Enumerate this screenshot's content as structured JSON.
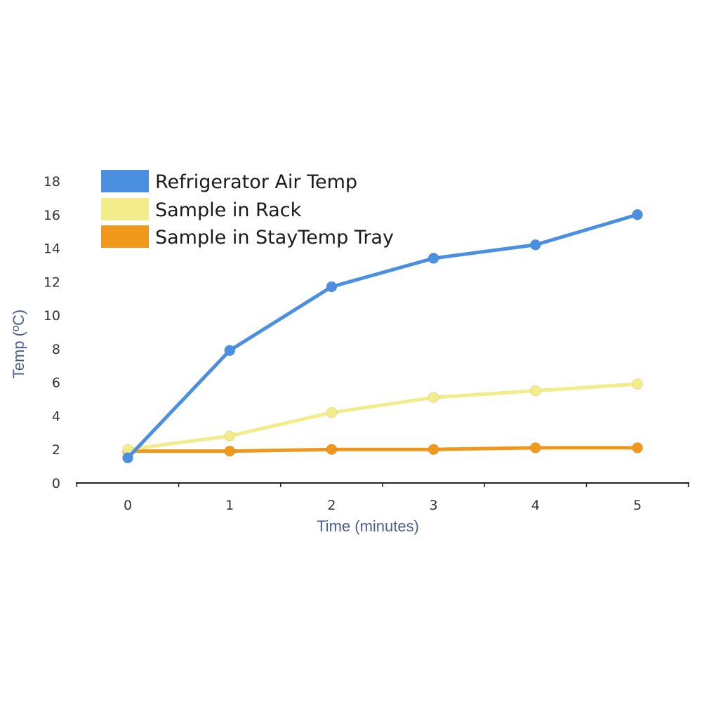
{
  "chart_data": {
    "type": "line",
    "title": "",
    "xlabel": "Time (minutes)",
    "ylabel": "Temp (ºC)",
    "x": [
      0,
      1,
      2,
      3,
      4,
      5
    ],
    "x_tick_labels": [
      "0",
      "1",
      "2",
      "3",
      "4",
      "5"
    ],
    "y_tick_labels": [
      "0",
      "2",
      "4",
      "6",
      "8",
      "10",
      "12",
      "14",
      "16",
      "18"
    ],
    "ylim": [
      0,
      18
    ],
    "grid": false,
    "legend_position": "top-left",
    "series": [
      {
        "name": "Refrigerator Air Temp",
        "color": "#4a8fe0",
        "values": [
          1.5,
          7.9,
          11.7,
          13.4,
          14.2,
          16.0
        ]
      },
      {
        "name": "Sample in Rack",
        "color": "#f2ec8a",
        "values": [
          2.0,
          2.8,
          4.2,
          5.1,
          5.5,
          5.9
        ]
      },
      {
        "name": "Sample in StayTemp Tray",
        "color": "#f0981c",
        "values": [
          1.9,
          1.9,
          2.0,
          2.0,
          2.1,
          2.1
        ]
      }
    ]
  }
}
